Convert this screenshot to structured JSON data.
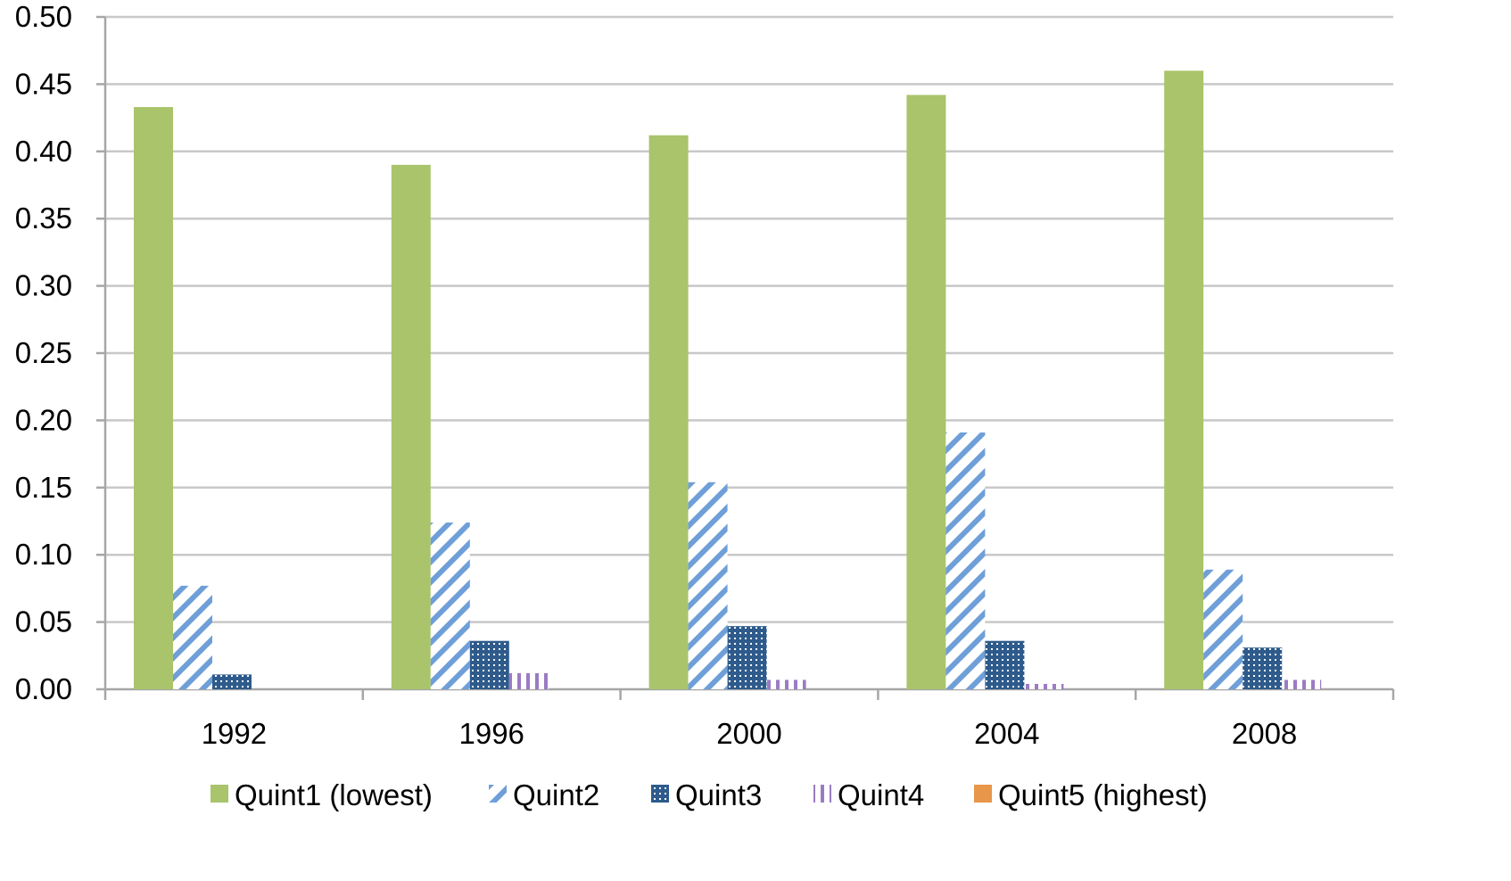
{
  "chart_data": {
    "type": "bar",
    "title": "",
    "xlabel": "",
    "ylabel": "",
    "categories": [
      "1992",
      "1996",
      "2000",
      "2004",
      "2008"
    ],
    "ylim": [
      0,
      0.5
    ],
    "yticks": [
      "0.00",
      "0.05",
      "0.10",
      "0.15",
      "0.20",
      "0.25",
      "0.30",
      "0.35",
      "0.40",
      "0.45",
      "0.50"
    ],
    "grid": true,
    "legend_position": "bottom",
    "series": [
      {
        "name": "Quint1 (lowest)",
        "values": [
          0.433,
          0.39,
          0.412,
          0.442,
          0.46
        ],
        "color": "#a9c46b",
        "pattern": "solid"
      },
      {
        "name": "Quint2",
        "values": [
          0.077,
          0.124,
          0.154,
          0.191,
          0.089
        ],
        "color": "#6f9fd8",
        "pattern": "diagonal-stripes"
      },
      {
        "name": "Quint3",
        "values": [
          0.011,
          0.036,
          0.047,
          0.036,
          0.031
        ],
        "color": "#2e5b8c",
        "pattern": "dots"
      },
      {
        "name": "Quint4",
        "values": [
          0.0,
          0.012,
          0.007,
          0.004,
          0.007
        ],
        "color": "#9b7bc3",
        "pattern": "vertical-stripes"
      },
      {
        "name": "Quint5 (highest)",
        "values": [
          0.0,
          0.0,
          0.0,
          0.0,
          0.0
        ],
        "color": "#e8964a",
        "pattern": "solid"
      }
    ]
  }
}
